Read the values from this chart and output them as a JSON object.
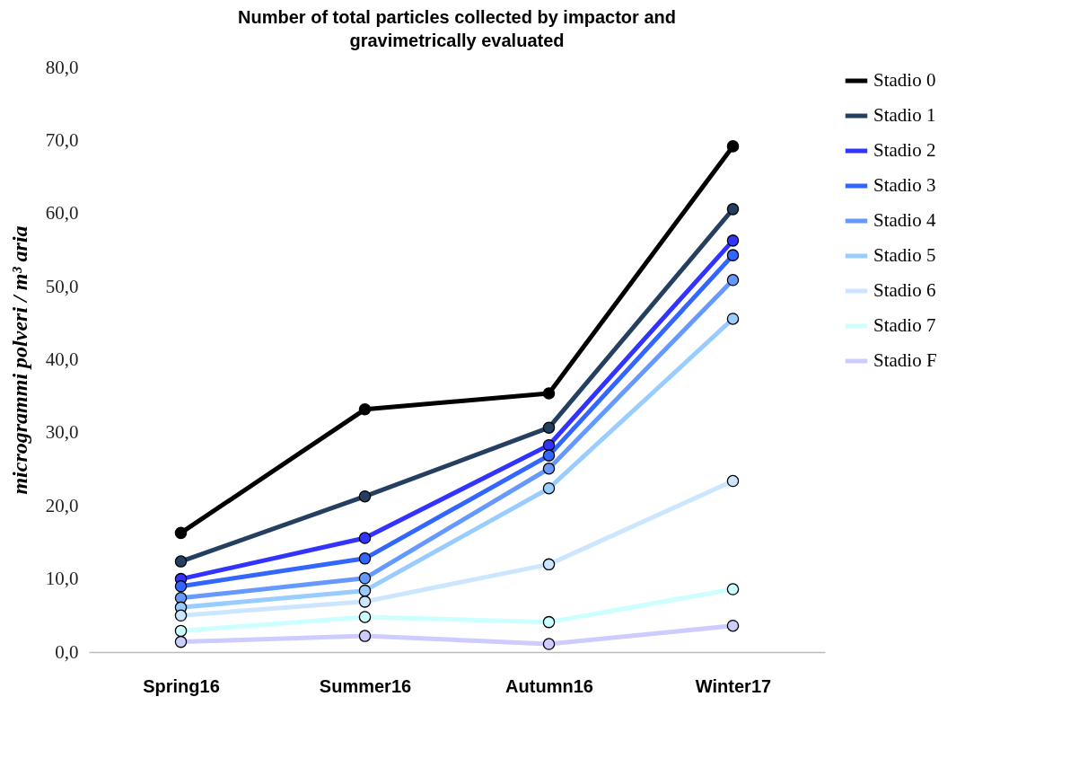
{
  "chart_data": {
    "type": "line",
    "title": "Number of total particles collected by impactor and gravimetrically evaluated",
    "ylabel": "microgrammi polveri / m³ aria",
    "categories": [
      "Spring16",
      "Summer16",
      "Autumn16",
      "Winter17"
    ],
    "ylim": [
      0,
      80
    ],
    "yticks": [
      {
        "value": 0,
        "label": "0,0"
      },
      {
        "value": 10,
        "label": "10,0"
      },
      {
        "value": 20,
        "label": "20,0"
      },
      {
        "value": 30,
        "label": "30,0"
      },
      {
        "value": 40,
        "label": "40,0"
      },
      {
        "value": 50,
        "label": "50,0"
      },
      {
        "value": 60,
        "label": "60,0"
      },
      {
        "value": 70,
        "label": "70,0"
      },
      {
        "value": 80,
        "label": "80,0"
      }
    ],
    "grid": false,
    "legend": "right",
    "marker": "circle",
    "line_style": "solid",
    "series": [
      {
        "name": "Stadio 0",
        "color": "#000000",
        "values": [
          16.3,
          33.2,
          35.4,
          69.2
        ]
      },
      {
        "name": "Stadio 1",
        "color": "#243f60",
        "values": [
          12.4,
          21.3,
          30.7,
          60.6
        ]
      },
      {
        "name": "Stadio  2",
        "color": "#3333ff",
        "values": [
          10.0,
          15.6,
          28.3,
          56.3
        ]
      },
      {
        "name": "Stadio  3",
        "color": "#3366ff",
        "values": [
          9.0,
          12.8,
          26.9,
          54.3
        ]
      },
      {
        "name": "Stadio  4",
        "color": "#6699ff",
        "values": [
          7.4,
          10.1,
          25.1,
          50.9
        ]
      },
      {
        "name": "Stadio  5",
        "color": "#99ccff",
        "values": [
          6.1,
          8.4,
          22.4,
          45.6
        ]
      },
      {
        "name": "Stadio 6",
        "color": "#cce6ff",
        "values": [
          5.0,
          6.9,
          12.0,
          23.4
        ]
      },
      {
        "name": "Stadio  7",
        "color": "#ccffff",
        "values": [
          2.9,
          4.8,
          4.1,
          8.6
        ]
      },
      {
        "name": "Stadio F",
        "color": "#ccccff",
        "values": [
          1.4,
          2.2,
          1.1,
          3.6
        ]
      }
    ]
  }
}
